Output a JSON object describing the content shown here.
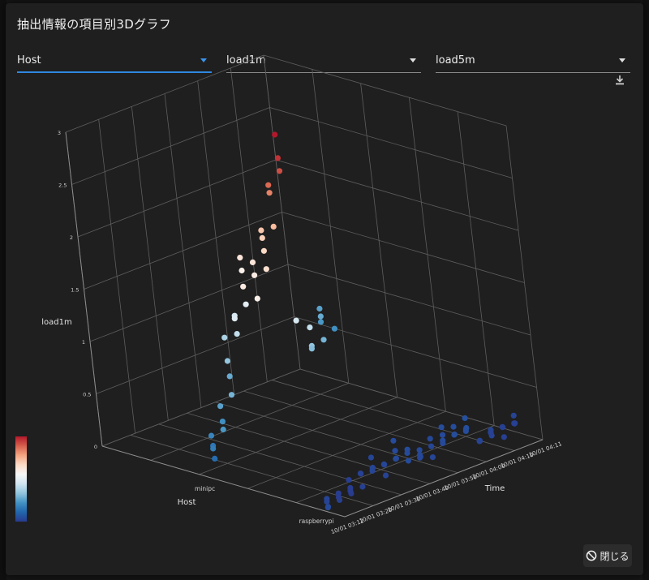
{
  "dialog": {
    "title": "抽出情報の項目別3Dグラフ",
    "close_label": "閉じる"
  },
  "selectors": [
    {
      "value": "Host"
    },
    {
      "value": "load1m"
    },
    {
      "value": "load5m"
    }
  ],
  "icons": {
    "download": "download-icon",
    "close": "block-icon"
  },
  "colors": {
    "accent": "#2f87e0",
    "background": "#1f1f1f",
    "colorscale": [
      "#b2182b",
      "#d6604d",
      "#f4a582",
      "#fddbc7",
      "#f7f7f7",
      "#d1e5f0",
      "#92c5de",
      "#4393c3",
      "#2166ac",
      "#283b8f"
    ]
  },
  "chart_data": {
    "type": "scatter3d",
    "x_axis": {
      "title": "Host",
      "categories": [
        "minipc",
        "raspberrypi"
      ]
    },
    "y_axis": {
      "title": "Time",
      "ticks": [
        "10/01 03:12",
        "10/01 03:20",
        "10/01 03:30",
        "10/01 03:40",
        "10/01 03:50",
        "10/01 04:00",
        "10/01 04:10",
        "10/01 04:11"
      ]
    },
    "z_axis": {
      "title": "load1m",
      "ticks": [
        "0",
        "0.5",
        "1",
        "1.5",
        "2",
        "2.5",
        "3"
      ],
      "range": [
        0,
        3
      ]
    },
    "color_by": "load5m",
    "series": [
      {
        "host": "minipc",
        "time": [
          "10/01 03:12",
          "10/01 03:13",
          "10/01 03:14",
          "10/01 03:15",
          "10/01 03:16",
          "10/01 03:17",
          "10/01 03:18",
          "10/01 03:19",
          "10/01 03:20",
          "10/01 03:21",
          "10/01 03:22",
          "10/01 03:23",
          "10/01 03:24",
          "10/01 03:25",
          "10/01 03:26",
          "10/01 03:27",
          "10/01 03:28",
          "10/01 03:29",
          "10/01 03:30",
          "10/01 03:31",
          "10/01 03:32",
          "10/01 03:33",
          "10/01 03:34",
          "10/01 03:35",
          "10/01 03:36",
          "10/01 03:37",
          "10/01 03:38",
          "10/01 03:39",
          "10/01 03:40",
          "10/01 03:41",
          "10/01 03:42",
          "10/01 03:43",
          "10/01 03:44",
          "10/01 03:45",
          "10/01 03:46",
          "10/01 03:47",
          "10/01 03:48",
          "10/01 03:49",
          "10/01 03:50",
          "10/01 03:51"
        ],
        "load1m": [
          0.2,
          0.3,
          0.25,
          0.35,
          0.5,
          0.4,
          0.6,
          0.9,
          0.7,
          1.0,
          1.2,
          1.25,
          1.4,
          1.35,
          1.5,
          1.8,
          1.9,
          1.6,
          1.5,
          1.7,
          1.8,
          1.75,
          1.9,
          2.0,
          2.05,
          2.1,
          2.4,
          2.45,
          2.6,
          2.7,
          2.9,
          1.1,
          1.05,
          0.85,
          0.8,
          0.9,
          1.1,
          1.15,
          1.0,
          0.95
        ],
        "load5m": [
          0.4,
          0.45,
          0.5,
          0.55,
          0.6,
          0.65,
          0.7,
          0.75,
          0.8,
          0.9,
          1.0,
          1.1,
          1.2,
          1.25,
          1.3,
          1.5,
          1.6,
          1.55,
          1.5,
          1.55,
          1.6,
          1.65,
          1.7,
          1.75,
          1.8,
          1.85,
          2.1,
          2.2,
          2.3,
          2.4,
          2.5,
          1.2,
          1.1,
          0.9,
          0.85,
          0.8,
          0.75,
          0.7,
          0.65,
          0.6
        ]
      },
      {
        "host": "raspberrypi",
        "time": [
          "10/01 03:12",
          "10/01 03:13",
          "10/01 03:14",
          "10/01 03:15",
          "10/01 03:16",
          "10/01 03:17",
          "10/01 03:18",
          "10/01 03:19",
          "10/01 03:20",
          "10/01 03:21",
          "10/01 03:22",
          "10/01 03:23",
          "10/01 03:24",
          "10/01 03:25",
          "10/01 03:26",
          "10/01 03:27",
          "10/01 03:28",
          "10/01 03:29",
          "10/01 03:30",
          "10/01 03:31",
          "10/01 03:32",
          "10/01 03:33",
          "10/01 03:34",
          "10/01 03:35",
          "10/01 03:36",
          "10/01 03:37",
          "10/01 03:38",
          "10/01 03:39",
          "10/01 03:40",
          "10/01 03:41",
          "10/01 03:42",
          "10/01 03:43",
          "10/01 03:44",
          "10/01 03:45",
          "10/01 03:46",
          "10/01 03:47",
          "10/01 03:48",
          "10/01 03:49",
          "10/01 03:50",
          "10/01 03:51",
          "10/01 03:52",
          "10/01 03:53",
          "10/01 03:54",
          "10/01 03:55",
          "10/01 03:56",
          "10/01 03:57",
          "10/01 03:58",
          "10/01 03:59",
          "10/01 04:00",
          "10/01 04:01",
          "10/01 04:02",
          "10/01 04:03",
          "10/01 04:04",
          "10/01 04:05",
          "10/01 04:06",
          "10/01 04:07",
          "10/01 04:08",
          "10/01 04:09",
          "10/01 04:10",
          "10/01 04:11"
        ],
        "load1m": [
          0.05,
          0.02,
          0.08,
          0.03,
          0.06,
          0.1,
          0.04,
          0.09,
          0.12,
          0.07,
          0.15,
          0.1,
          0.2,
          0.18,
          0.25,
          0.22,
          0.3,
          0.15,
          0.12,
          0.2,
          0.18,
          0.25,
          0.3,
          0.2,
          0.35,
          0.28,
          0.15,
          0.2,
          0.18,
          0.22,
          0.15,
          0.1,
          0.12,
          0.2,
          0.25,
          0.3,
          0.35,
          0.2,
          0.15,
          0.25,
          0.3,
          0.2,
          0.28,
          0.35,
          0.22,
          0.18,
          0.1,
          0.08,
          0.05,
          0.12,
          0.15,
          0.1,
          0.08,
          0.05,
          0.12,
          0.1,
          0.15,
          0.2,
          0.1,
          0.08
        ],
        "load5m": [
          0.2,
          0.18,
          0.15,
          0.14,
          0.12,
          0.1,
          0.1,
          0.09,
          0.1,
          0.1,
          0.11,
          0.12,
          0.12,
          0.13,
          0.14,
          0.15,
          0.15,
          0.15,
          0.14,
          0.15,
          0.16,
          0.17,
          0.18,
          0.18,
          0.19,
          0.2,
          0.19,
          0.18,
          0.18,
          0.18,
          0.17,
          0.16,
          0.15,
          0.16,
          0.17,
          0.18,
          0.2,
          0.19,
          0.18,
          0.19,
          0.2,
          0.2,
          0.21,
          0.22,
          0.21,
          0.2,
          0.18,
          0.16,
          0.14,
          0.14,
          0.15,
          0.14,
          0.13,
          0.12,
          0.12,
          0.12,
          0.13,
          0.14,
          0.13,
          0.12
        ]
      }
    ]
  }
}
